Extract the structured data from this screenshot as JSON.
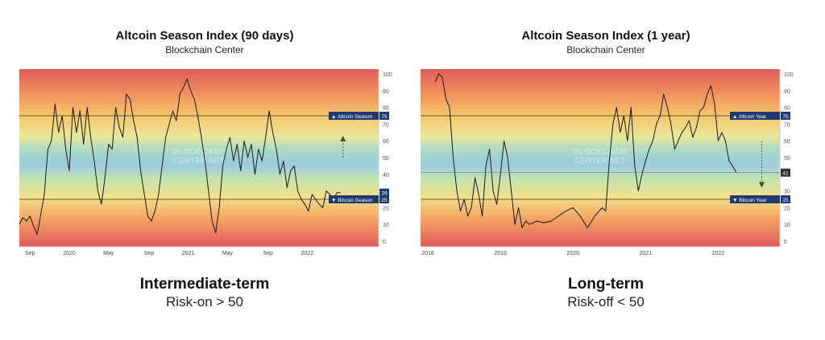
{
  "chart_data": [
    {
      "type": "line",
      "title": "Altcoin Season Index (90 days)",
      "subtitle": "Blockchain Center",
      "watermark": [
        "BLOCKCHAIN",
        "CENTER.NET"
      ],
      "ylim": [
        0,
        100
      ],
      "y_ticks": [
        "0",
        "10",
        "20",
        "30",
        "40",
        "50",
        "60",
        "70",
        "80",
        "90",
        "100"
      ],
      "x_range": [
        2019.58,
        2022.6
      ],
      "x_ticks": [
        {
          "x": 2019.67,
          "label": "Sep"
        },
        {
          "x": 2020.0,
          "label": "2020"
        },
        {
          "x": 2020.33,
          "label": "May"
        },
        {
          "x": 2020.67,
          "label": "Sep"
        },
        {
          "x": 2021.0,
          "label": "2021"
        },
        {
          "x": 2021.33,
          "label": "May"
        },
        {
          "x": 2021.67,
          "label": "Sep"
        },
        {
          "x": 2022.0,
          "label": "2022"
        }
      ],
      "thresholds": [
        {
          "name": "Altcoin Season",
          "value": 75,
          "marker": "▲",
          "color": "#1f3a6e"
        },
        {
          "name": "Bitcoin Season",
          "value": 25,
          "marker": "▼",
          "color": "#1f3a6e"
        }
      ],
      "current_value_label": {
        "value": 29,
        "color": "#1f3a6e"
      },
      "arrow": {
        "direction": "up",
        "x": 2022.3,
        "from": 50,
        "to": 62
      },
      "series": [
        {
          "x": [
            2019.58,
            2019.61,
            2019.64,
            2019.67,
            2019.7,
            2019.73,
            2019.76,
            2019.79,
            2019.82,
            2019.85,
            2019.88,
            2019.91,
            2019.94,
            2019.97,
            2020.0,
            2020.03,
            2020.06,
            2020.09,
            2020.12,
            2020.15,
            2020.18,
            2020.21,
            2020.24,
            2020.27,
            2020.3,
            2020.33,
            2020.36,
            2020.39,
            2020.42,
            2020.45,
            2020.48,
            2020.51,
            2020.54,
            2020.57,
            2020.6,
            2020.63,
            2020.66,
            2020.69,
            2020.72,
            2020.75,
            2020.78,
            2020.81,
            2020.84,
            2020.87,
            2020.9,
            2020.93,
            2020.96,
            2020.99,
            2021.02,
            2021.05,
            2021.08,
            2021.11,
            2021.14,
            2021.17,
            2021.2,
            2021.23,
            2021.26,
            2021.29,
            2021.32,
            2021.35,
            2021.38,
            2021.41,
            2021.44,
            2021.47,
            2021.5,
            2021.53,
            2021.56,
            2021.59,
            2021.62,
            2021.65,
            2021.68,
            2021.71,
            2021.74,
            2021.77,
            2021.8,
            2021.83,
            2021.86,
            2021.89,
            2021.92,
            2021.95,
            2021.98,
            2022.01,
            2022.04,
            2022.07,
            2022.1,
            2022.13,
            2022.16,
            2022.19,
            2022.22,
            2022.25,
            2022.28
          ],
          "y": [
            10,
            14,
            12,
            15,
            9,
            4,
            16,
            28,
            55,
            60,
            82,
            65,
            75,
            55,
            42,
            80,
            65,
            78,
            58,
            80,
            62,
            48,
            30,
            22,
            38,
            58,
            55,
            80,
            68,
            62,
            88,
            85,
            72,
            62,
            42,
            28,
            15,
            12,
            18,
            28,
            45,
            62,
            70,
            78,
            72,
            88,
            92,
            97,
            90,
            85,
            75,
            62,
            48,
            30,
            12,
            5,
            20,
            45,
            55,
            62,
            48,
            58,
            42,
            60,
            50,
            58,
            40,
            55,
            48,
            62,
            78,
            65,
            55,
            40,
            48,
            32,
            42,
            45,
            30,
            25,
            22,
            18,
            28,
            25,
            22,
            20,
            30,
            28,
            25,
            29,
            29
          ]
        }
      ]
    },
    {
      "type": "line",
      "title": "Altcoin Season Index (1 year)",
      "subtitle": "Blockchain Center",
      "watermark": [
        "BLOCKCHAIN",
        "CENTER.NET"
      ],
      "ylim": [
        0,
        100
      ],
      "y_ticks": [
        "0",
        "10",
        "20",
        "30",
        "40",
        "50",
        "60",
        "70",
        "80",
        "90",
        "100"
      ],
      "x_range": [
        2017.9,
        2022.85
      ],
      "x_ticks": [
        {
          "x": 2018,
          "label": "2018"
        },
        {
          "x": 2019,
          "label": "2019"
        },
        {
          "x": 2020,
          "label": "2020"
        },
        {
          "x": 2021,
          "label": "2021"
        },
        {
          "x": 2022,
          "label": "2022"
        }
      ],
      "thresholds": [
        {
          "name": "Altcoin Year",
          "value": 75,
          "marker": "▲",
          "color": "#1f3a6e"
        },
        {
          "name": "Bitcoin Year",
          "value": 25,
          "marker": "▼",
          "color": "#1f3a6e"
        }
      ],
      "current_value_label": {
        "value": 41,
        "color": "#333333"
      },
      "arrow": {
        "direction": "down",
        "x": 2022.6,
        "from": 60,
        "to": 33
      },
      "series": [
        {
          "x": [
            2018.1,
            2018.15,
            2018.2,
            2018.25,
            2018.3,
            2018.35,
            2018.4,
            2018.45,
            2018.5,
            2018.55,
            2018.6,
            2018.65,
            2018.7,
            2018.75,
            2018.8,
            2018.85,
            2018.9,
            2018.95,
            2019.0,
            2019.05,
            2019.1,
            2019.15,
            2019.2,
            2019.25,
            2019.3,
            2019.35,
            2019.4,
            2019.5,
            2019.6,
            2019.7,
            2019.8,
            2019.9,
            2020.0,
            2020.1,
            2020.2,
            2020.3,
            2020.4,
            2020.45,
            2020.5,
            2020.55,
            2020.6,
            2020.65,
            2020.7,
            2020.75,
            2020.8,
            2020.85,
            2020.9,
            2020.95,
            2021.0,
            2021.05,
            2021.1,
            2021.15,
            2021.2,
            2021.25,
            2021.3,
            2021.35,
            2021.4,
            2021.45,
            2021.5,
            2021.55,
            2021.6,
            2021.65,
            2021.7,
            2021.75,
            2021.8,
            2021.85,
            2021.9,
            2021.95,
            2022.0,
            2022.05,
            2022.1,
            2022.15,
            2022.2,
            2022.25
          ],
          "y": [
            95,
            100,
            98,
            85,
            80,
            50,
            30,
            18,
            25,
            15,
            20,
            38,
            28,
            15,
            45,
            55,
            30,
            22,
            40,
            60,
            50,
            30,
            10,
            20,
            8,
            12,
            10,
            12,
            11,
            12,
            15,
            18,
            20,
            15,
            8,
            15,
            20,
            18,
            48,
            70,
            80,
            65,
            75,
            60,
            80,
            45,
            30,
            40,
            48,
            55,
            60,
            70,
            75,
            88,
            80,
            70,
            55,
            60,
            65,
            68,
            72,
            62,
            68,
            78,
            80,
            88,
            93,
            82,
            60,
            65,
            60,
            48,
            45,
            41
          ]
        }
      ]
    }
  ],
  "captions": [
    {
      "main": "Intermediate-term",
      "sub": "Risk-on > 50"
    },
    {
      "main": "Long-term",
      "sub": "Risk-off < 50"
    }
  ]
}
